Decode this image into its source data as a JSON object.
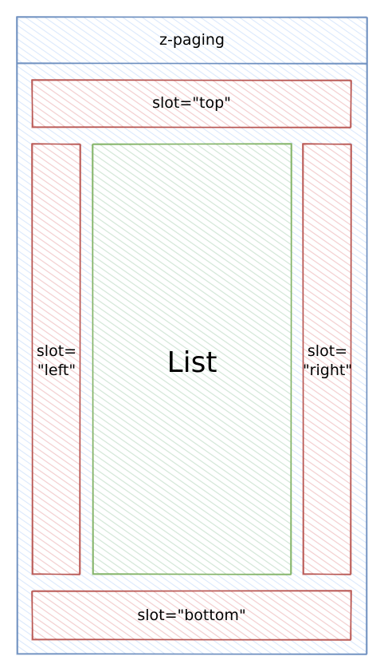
{
  "diagram": {
    "container": {
      "label": "z-paging"
    },
    "slots": {
      "top": {
        "label": "slot=\"top\""
      },
      "left": {
        "label": "slot=\n\"left\""
      },
      "list": {
        "label": "List"
      },
      "right": {
        "label": "slot=\n\"right\""
      },
      "bottom": {
        "label": "slot=\"bottom\""
      }
    }
  },
  "colors": {
    "container_stroke": "#6c8ebf",
    "container_fill": "#dae8fc",
    "slot_stroke": "#b85450",
    "slot_fill": "#f8cecc",
    "list_stroke": "#82b366",
    "list_fill": "#d5e8d4"
  }
}
